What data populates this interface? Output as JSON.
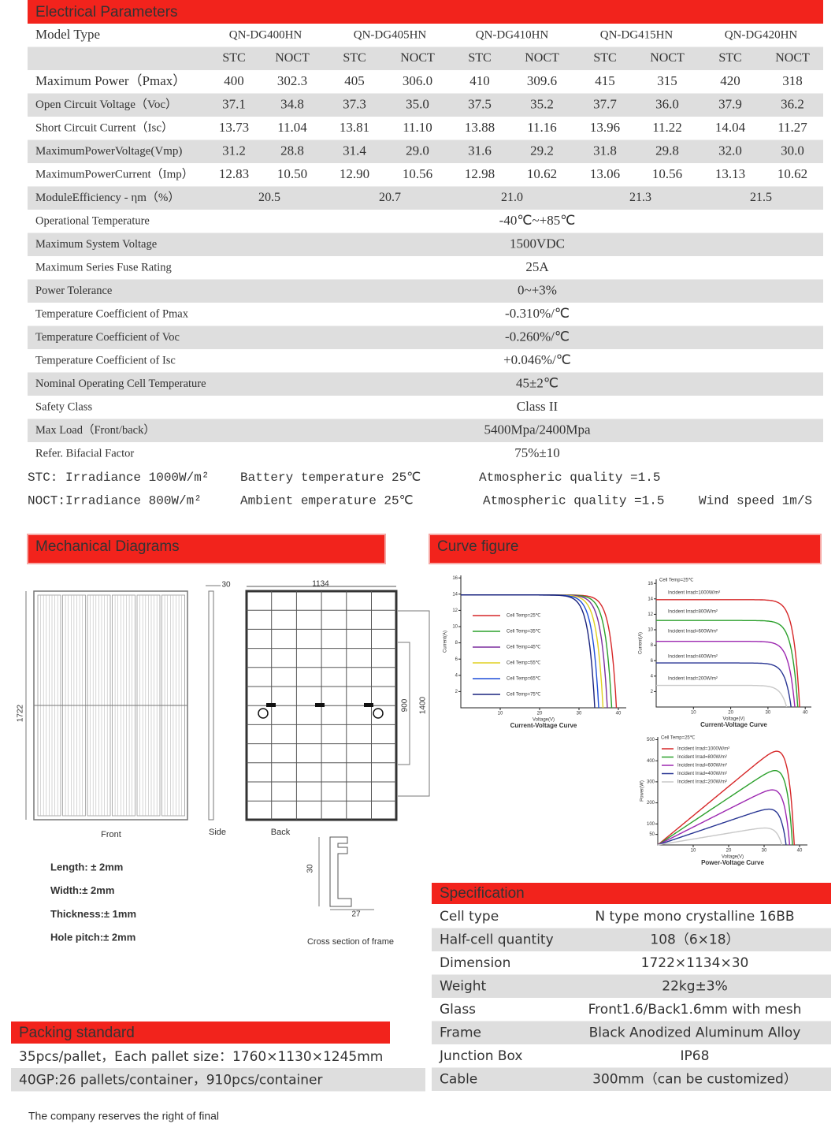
{
  "electrical": {
    "title": "Electrical Parameters",
    "model_label": "Model Type",
    "models": [
      "QN-DG400HN",
      "QN-DG405HN",
      "QN-DG410HN",
      "QN-DG415HN",
      "QN-DG420HN"
    ],
    "conditions": [
      "STC",
      "NOCT",
      "STC",
      "NOCT",
      "STC",
      "NOCT",
      "STC",
      "NOCT",
      "STC",
      "NOCT"
    ],
    "rows": [
      {
        "label": "Maximum Power（Pmax）",
        "values": [
          "400",
          "302.3",
          "405",
          "306.0",
          "410",
          "309.6",
          "415",
          "315",
          "420",
          "318"
        ]
      },
      {
        "label": "Open Circuit Voltage（Voc）",
        "values": [
          "37.1",
          "34.8",
          "37.3",
          "35.0",
          "37.5",
          "35.2",
          "37.7",
          "36.0",
          "37.9",
          "36.2"
        ]
      },
      {
        "label": "Short Circuit Current（Isc）",
        "values": [
          "13.73",
          "11.04",
          "13.81",
          "11.10",
          "13.88",
          "11.16",
          "13.96",
          "11.22",
          "14.04",
          "11.27"
        ]
      },
      {
        "label": "MaximumPowerVoltage(Vmp)",
        "values": [
          "31.2",
          "28.8",
          "31.4",
          "29.0",
          "31.6",
          "29.2",
          "31.8",
          "29.8",
          "32.0",
          "30.0"
        ]
      },
      {
        "label": "MaximumPowerCurrent（Imp）",
        "values": [
          "12.83",
          "10.50",
          "12.90",
          "10.56",
          "12.98",
          "10.62",
          "13.06",
          "10.56",
          "13.13",
          "10.62"
        ]
      }
    ],
    "efficiency": {
      "label": "ModuleEfficiency - ηm（%）",
      "values": [
        "20.5",
        "20.7",
        "21.0",
        "21.3",
        "21.5"
      ]
    },
    "common": [
      {
        "label": "Operational Temperature",
        "value": "-40℃~+85℃"
      },
      {
        "label": "Maximum System Voltage",
        "value": "1500VDC"
      },
      {
        "label": "Maximum Series Fuse Rating",
        "value": "25A"
      },
      {
        "label": "Power Tolerance",
        "value": "0~+3%"
      },
      {
        "label": "Temperature Coefficient of Pmax",
        "value": "-0.310%/℃"
      },
      {
        "label": "Temperature Coefficient of Voc",
        "value": "-0.260%/℃"
      },
      {
        "label": "Temperature Coefficient of Isc",
        "value": "+0.046%/℃"
      },
      {
        "label": "Nominal Operating Cell Temperature",
        "value": "45±2℃"
      },
      {
        "label": "Safety Class",
        "value": "Class II"
      },
      {
        "label": "Max Load（Front/back）",
        "value": "5400Mpa/2400Mpa"
      },
      {
        "label": "Refer. Bifacial Factor",
        "value": "75%±10"
      }
    ],
    "notes": [
      [
        "STC: Irradiance 1000W/m²",
        "Battery temperature 25℃",
        "Atmospheric quality =1.5"
      ],
      [
        "NOCT:Irradiance 800W/m²",
        "Ambient emperature 25℃",
        "Atmospheric quality =1.5",
        "Wind speed 1m/S"
      ]
    ]
  },
  "mechanical": {
    "title": "Mechanical Diagrams",
    "dimensions": {
      "side_thickness": "30",
      "width": "1134",
      "length": "1722",
      "hole_pitch": "900",
      "mount_pitch": "1400"
    },
    "views": [
      "Front",
      "Side",
      "Back"
    ],
    "frame": {
      "height": "30",
      "width": "27",
      "caption": "Cross section of frame"
    },
    "tolerances": [
      "Length: ± 2mm",
      "Width:± 2mm",
      "Thickness:± 1mm",
      "Hole pitch:± 2mm"
    ]
  },
  "curves": {
    "title": "Curve figure",
    "charts": [
      {
        "title": "Current-Voltage Curve",
        "xlabel": "Voltage(V)",
        "ylabel": "Current(A)",
        "yticks": [
          16,
          14,
          12,
          10,
          8,
          6,
          4,
          2
        ],
        "xticks": [
          10,
          20,
          30,
          40
        ],
        "legend": [
          "Cell Temp=25℃",
          "Cell Temp=35℃",
          "Cell Temp=45℃",
          "Cell Temp=55℃",
          "Cell Temp=65℃",
          "Cell Temp=75℃"
        ]
      },
      {
        "title": "Current-Voltage Curve",
        "xlabel": "Voltage(V)",
        "ylabel": "Current(A)",
        "yticks": [
          16,
          14,
          12,
          10,
          8,
          6,
          4,
          2
        ],
        "xticks": [
          10,
          20,
          30,
          40
        ],
        "legend_title": "Cell Temp=25℃",
        "legend": [
          "Incident Irrad=1000W/m²",
          "Incident Irrad=800W/m²",
          "Incident Irrad=600W/m²",
          "Incident Irrad=400W/m²",
          "Incident Irrad=200W/m²"
        ]
      },
      {
        "title": "Power-Voltage Curve",
        "xlabel": "Voltage(V)",
        "ylabel": "Power(W)",
        "yticks": [
          500,
          400,
          300,
          200,
          100,
          50
        ],
        "xticks": [
          10,
          20,
          30,
          40
        ],
        "legend_title": "Cell Temp=25℃",
        "legend": [
          "Incident Irrad=1000W/m²",
          "Incident Irrad=800W/m²",
          "Incident Irrad=600W/m²",
          "Incident Irrad=400W/m²",
          "Incident Irrad=200W/m²"
        ]
      }
    ]
  },
  "specification": {
    "title": "Specification",
    "rows": [
      {
        "label": "Cell type",
        "value": "N type mono crystalline 16BB"
      },
      {
        "label": "Half-cell quantity",
        "value": "108（6×18）"
      },
      {
        "label": "Dimension",
        "value": "1722×1134×30"
      },
      {
        "label": "Weight",
        "value": "22kg±3%"
      },
      {
        "label": "Glass",
        "value": "Front1.6/Back1.6mm with mesh"
      },
      {
        "label": "Frame",
        "value": "Black Anodized Aluminum Alloy"
      },
      {
        "label": "Junction Box",
        "value": "IP68"
      },
      {
        "label": "Cable",
        "value": "300mm（can be customized）"
      }
    ]
  },
  "packing": {
    "title": "Packing standard",
    "lines": [
      "35pcs/pallet，Each pallet size：1760×1130×1245mm",
      "40GP:26 pallets/container，910pcs/container"
    ]
  },
  "footer": "The company reserves the right of final"
}
